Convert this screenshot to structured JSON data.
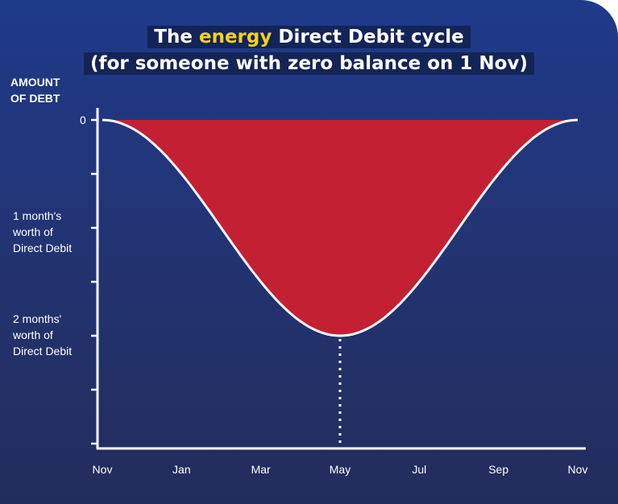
{
  "chart_data": {
    "type": "area",
    "title_parts": [
      "The ",
      "energy",
      " Direct Debit cycle"
    ],
    "subtitle": "(for someone with zero balance on 1 Nov)",
    "ylabel": [
      "AMOUNT",
      "OF DEBT"
    ],
    "y_tick_labels": [
      {
        "value": 0,
        "label": "0"
      },
      {
        "value": 1,
        "label": [
          "1 month's",
          "worth of",
          "Direct Debit"
        ]
      },
      {
        "value": 2,
        "label": [
          "2 months'",
          "worth of",
          "Direct Debit"
        ]
      }
    ],
    "ylim": [
      0,
      3
    ],
    "y_unit": "months' worth of Direct Debit",
    "x_tick_labels": [
      "Nov",
      "Jan",
      "Mar",
      "May",
      "Jul",
      "Sep",
      "Nov"
    ],
    "x_month_index": [
      0,
      2,
      4,
      6,
      8,
      10,
      12
    ],
    "series": [
      {
        "x": [
          0,
          1,
          2,
          3,
          4,
          5,
          6,
          7,
          8,
          9,
          10,
          11,
          12
        ],
        "values": [
          0,
          0.12,
          0.45,
          1.0,
          1.55,
          1.88,
          2.0,
          1.88,
          1.55,
          1.0,
          0.45,
          0.12,
          0
        ]
      }
    ],
    "peak": {
      "x_label": "May",
      "value": 2.0
    },
    "grid": false
  },
  "colors": {
    "background_top": "#1f3a8a",
    "background_bottom": "#232d5c",
    "debt_fill": "#c42033",
    "line": "#ffffff",
    "highlight_text": "#f2d21b"
  }
}
